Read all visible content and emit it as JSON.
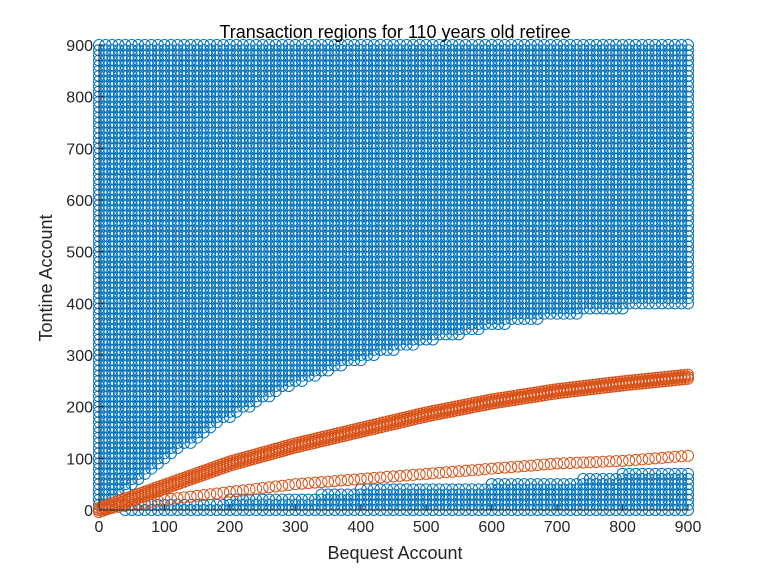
{
  "chart_data": {
    "type": "scatter",
    "title": "Transaction regions for 110 years old retiree",
    "xlabel": "Bequest Account",
    "ylabel": "Tontine Account",
    "xlim": [
      0,
      900
    ],
    "ylim": [
      0,
      900
    ],
    "xticks": [
      "0",
      "100",
      "200",
      "300",
      "400",
      "500",
      "600",
      "700",
      "800",
      "900"
    ],
    "yticks": [
      "0",
      "100",
      "200",
      "300",
      "400",
      "500",
      "600",
      "700",
      "800",
      "900"
    ],
    "grid": false,
    "legend": "none",
    "marker": "circle-open",
    "grid_step": 10,
    "colors": {
      "blue": "#0072BD",
      "orange": "#D95319"
    },
    "regions": {
      "upper_blue": {
        "color": "blue",
        "x_range": [
          0,
          900
        ],
        "y_max": 900,
        "lower_boundary": {
          "x": [
            0,
            100,
            200,
            300,
            400,
            500,
            600,
            700,
            800,
            900
          ],
          "y": [
            0,
            95,
            180,
            245,
            290,
            325,
            355,
            375,
            390,
            400
          ]
        }
      },
      "lower_blue": {
        "color": "blue",
        "x_range": [
          40,
          900
        ],
        "y_min": 0,
        "upper_boundary": {
          "x": [
            40,
            100,
            200,
            300,
            400,
            500,
            600,
            700,
            800,
            900
          ],
          "y": [
            10,
            15,
            20,
            25,
            40,
            45,
            50,
            55,
            70,
            70
          ]
        }
      },
      "upper_orange_curve": {
        "color": "orange",
        "band": 12,
        "x": [
          0,
          100,
          200,
          300,
          400,
          500,
          600,
          700,
          800,
          900
        ],
        "y": [
          0,
          45,
          90,
          125,
          155,
          185,
          210,
          230,
          245,
          258
        ]
      },
      "lower_orange_curve": {
        "color": "orange",
        "x": [
          0,
          100,
          200,
          300,
          400,
          500,
          600,
          700,
          800,
          900
        ],
        "y": [
          0,
          20,
          35,
          50,
          60,
          70,
          80,
          90,
          95,
          105
        ]
      }
    }
  }
}
